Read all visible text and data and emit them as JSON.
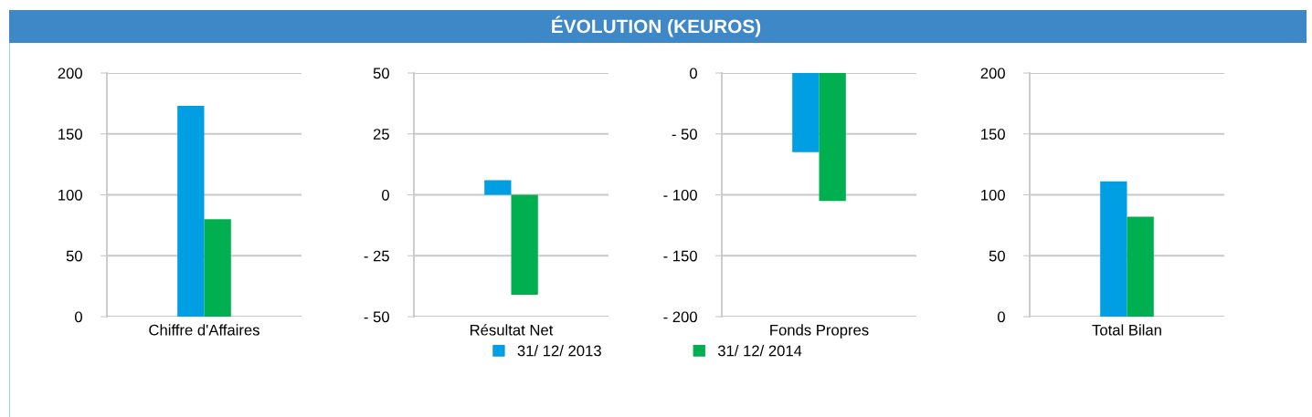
{
  "chart_data": [
    {
      "type": "bar",
      "categories": [
        "Chiffre d'Affaires"
      ],
      "ylim": [
        0,
        200
      ],
      "yticks": [
        0,
        50,
        100,
        150,
        200
      ],
      "grid": "y",
      "series": [
        {
          "color": "#009fe3",
          "values": [
            173
          ]
        },
        {
          "color": "#00b050",
          "values": [
            80
          ]
        }
      ]
    },
    {
      "type": "bar",
      "title": "ÉVOLUTION (KEUROS)",
      "categories": [
        "Résultat Net"
      ],
      "ylim": [
        -50,
        50
      ],
      "yticks": [
        {
          "value": -50,
          "label": "- 50"
        },
        {
          "value": -25,
          "label": "- 25"
        },
        0,
        25,
        50
      ],
      "grid": "y",
      "legend": "bottom",
      "series": [
        {
          "name": "31/ 12/ 2013",
          "color": "#009fe3",
          "values": [
            6
          ]
        },
        {
          "name": "31/ 12/ 2014",
          "color": "#00b050",
          "values": [
            -41
          ]
        }
      ]
    },
    {
      "type": "bar",
      "categories": [
        "Fonds Propres"
      ],
      "ylim": [
        -200,
        0
      ],
      "yticks": [
        {
          "value": -200,
          "label": "- 200"
        },
        {
          "value": -150,
          "label": "- 150"
        },
        {
          "value": -100,
          "label": "- 100"
        },
        {
          "value": -50,
          "label": "- 50"
        },
        0
      ],
      "grid": "y",
      "series": [
        {
          "color": "#009fe3",
          "values": [
            -65
          ]
        },
        {
          "color": "#00b050",
          "values": [
            -105
          ]
        }
      ]
    },
    {
      "type": "bar",
      "categories": [
        "Total Bilan"
      ],
      "ylim": [
        0,
        200
      ],
      "yticks": [
        0,
        50,
        100,
        150,
        200
      ],
      "grid": "y",
      "series": [
        {
          "color": "#009fe3",
          "values": [
            111
          ]
        },
        {
          "color": "#00b050",
          "values": [
            82
          ]
        }
      ]
    }
  ]
}
